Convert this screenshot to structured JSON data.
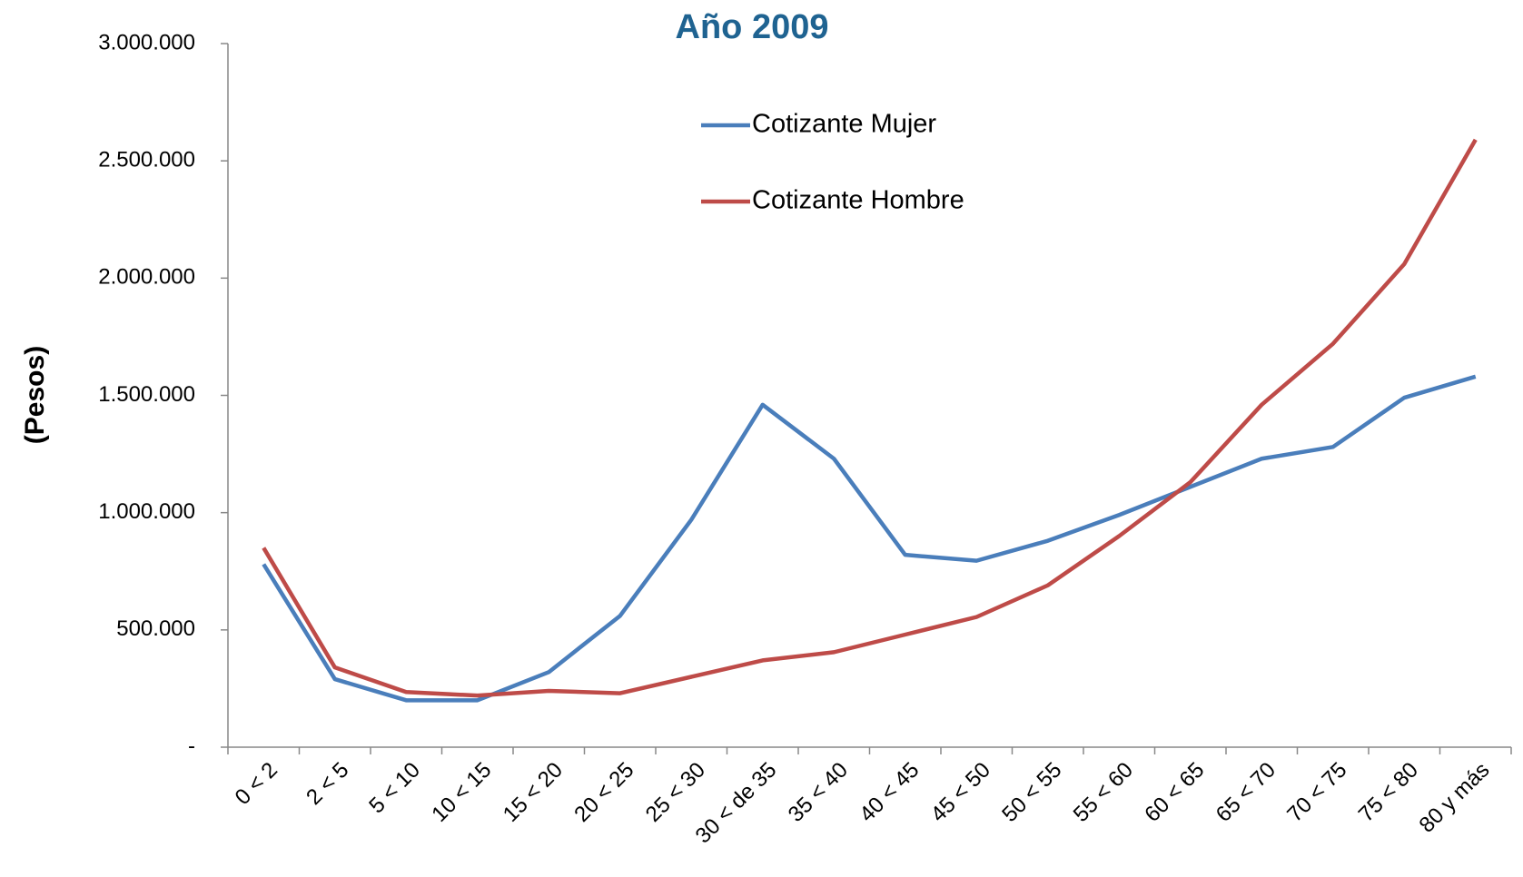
{
  "chart_data": {
    "type": "line",
    "title": "Año 2009",
    "y_label": "(Pesos)",
    "categories": [
      "0 < 2",
      "2 < 5",
      "5 < 10",
      "10 < 15",
      "15 < 20",
      "20 < 25",
      "25 < 30",
      "30 < de 35",
      "35 < 40",
      "40 < 45",
      "45 < 50",
      "50 < 55",
      "55 < 60",
      "60 < 65",
      "65 < 70",
      "70 < 75",
      "75 < 80",
      "80 y más"
    ],
    "series": [
      {
        "name": "Cotizante Mujer",
        "color": "#4a7ebb",
        "values": [
          780000,
          290000,
          200000,
          200000,
          320000,
          560000,
          970000,
          1460000,
          1230000,
          820000,
          795000,
          880000,
          990000,
          1110000,
          1230000,
          1280000,
          1490000,
          1580000
        ]
      },
      {
        "name": "Cotizante Hombre",
        "color": "#be4b48",
        "values": [
          850000,
          340000,
          235000,
          220000,
          240000,
          230000,
          300000,
          370000,
          405000,
          480000,
          555000,
          690000,
          900000,
          1130000,
          1460000,
          1720000,
          2060000,
          2590000
        ]
      }
    ],
    "ylim": [
      0,
      3000000
    ],
    "yticks": [
      {
        "value": 0,
        "label": "-"
      },
      {
        "value": 500000,
        "label": "500.000"
      },
      {
        "value": 1000000,
        "label": "1.000.000"
      },
      {
        "value": 1500000,
        "label": "1.500.000"
      },
      {
        "value": 2000000,
        "label": "2.000.000"
      },
      {
        "value": 2500000,
        "label": "2.500.000"
      },
      {
        "value": 3000000,
        "label": "3.000.000"
      }
    ],
    "grid": false,
    "legend": "top"
  }
}
